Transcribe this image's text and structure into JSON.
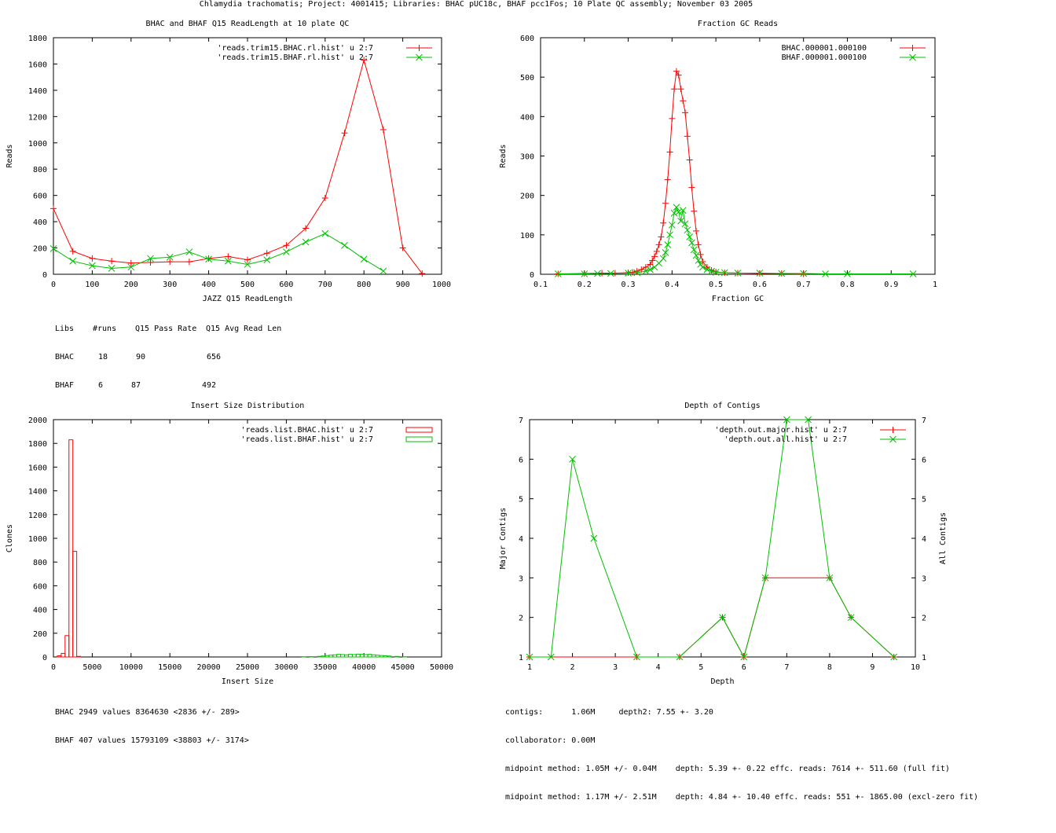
{
  "page_title": "Chlamydia trachomatis; Project: 4001415; Libraries: BHAC pUC18c, BHAF pcc1Fos; 10 Plate QC assembly; November 03 2005",
  "colors": {
    "series1": "#ff0000",
    "series2": "#00c000"
  },
  "chart_data": [
    {
      "type": "line",
      "title": "BHAC and BHAF Q15 ReadLength at 10 plate QC",
      "xlabel": "JAZZ Q15 ReadLength",
      "ylabel": "Reads",
      "xlim": [
        0,
        1000
      ],
      "ylim": [
        0,
        1800
      ],
      "xticks": [
        0,
        100,
        200,
        300,
        400,
        500,
        600,
        700,
        800,
        900,
        1000
      ],
      "yticks": [
        0,
        200,
        400,
        600,
        800,
        1000,
        1200,
        1400,
        1600,
        1800
      ],
      "legend_position": "top-right",
      "series": [
        {
          "name": "'reads.trim15.BHAC.rl.hist' u 2:7",
          "marker": "plus",
          "x": [
            0,
            50,
            100,
            150,
            200,
            250,
            300,
            350,
            400,
            450,
            500,
            550,
            600,
            650,
            700,
            750,
            800,
            850,
            900,
            950
          ],
          "y": [
            500,
            175,
            120,
            100,
            85,
            90,
            95,
            95,
            120,
            135,
            110,
            160,
            220,
            350,
            580,
            1075,
            1630,
            1100,
            200,
            5
          ]
        },
        {
          "name": "'reads.trim15.BHAF.rl.hist' u 2:7",
          "marker": "cross",
          "x": [
            0,
            50,
            100,
            150,
            200,
            250,
            300,
            350,
            400,
            450,
            500,
            550,
            600,
            650,
            700,
            750,
            800,
            850
          ],
          "y": [
            195,
            100,
            65,
            45,
            55,
            120,
            130,
            170,
            115,
            100,
            75,
            110,
            170,
            245,
            310,
            220,
            115,
            25
          ]
        }
      ],
      "stats_table": {
        "header": [
          "Libs",
          "#runs",
          "Q15 Pass Rate",
          "Q15 Avg Read Len"
        ],
        "rows": [
          [
            "BHAC",
            "18",
            "90",
            "656"
          ],
          [
            "BHAF",
            "6",
            "87",
            "492"
          ]
        ]
      }
    },
    {
      "type": "line",
      "title": "Fraction GC Reads",
      "xlabel": "Fraction GC",
      "ylabel": "Reads",
      "xlim": [
        0.1,
        1
      ],
      "ylim": [
        0,
        600
      ],
      "xticks": [
        0.1,
        0.2,
        0.3,
        0.4,
        0.5,
        0.6,
        0.7,
        0.8,
        0.9,
        1
      ],
      "yticks": [
        0,
        100,
        200,
        300,
        400,
        500,
        600
      ],
      "legend_position": "top-right",
      "series": [
        {
          "name": "BHAC.000001.000100",
          "marker": "plus",
          "x": [
            0.14,
            0.2,
            0.24,
            0.27,
            0.3,
            0.31,
            0.32,
            0.33,
            0.34,
            0.35,
            0.355,
            0.36,
            0.365,
            0.37,
            0.375,
            0.38,
            0.385,
            0.39,
            0.395,
            0.4,
            0.405,
            0.41,
            0.415,
            0.42,
            0.425,
            0.43,
            0.435,
            0.44,
            0.445,
            0.45,
            0.455,
            0.46,
            0.465,
            0.47,
            0.48,
            0.49,
            0.5,
            0.52,
            0.55,
            0.6,
            0.65,
            0.7
          ],
          "y": [
            1,
            2,
            3,
            3,
            4,
            5,
            8,
            12,
            18,
            25,
            35,
            45,
            58,
            75,
            95,
            130,
            180,
            240,
            310,
            395,
            470,
            515,
            505,
            470,
            440,
            410,
            350,
            290,
            220,
            160,
            110,
            75,
            50,
            32,
            18,
            10,
            6,
            4,
            3,
            2,
            2,
            1
          ]
        },
        {
          "name": "BHAF.000001.000100",
          "marker": "cross",
          "x": [
            0.14,
            0.2,
            0.23,
            0.26,
            0.3,
            0.32,
            0.34,
            0.35,
            0.36,
            0.37,
            0.38,
            0.385,
            0.39,
            0.395,
            0.4,
            0.405,
            0.41,
            0.415,
            0.42,
            0.425,
            0.43,
            0.435,
            0.44,
            0.445,
            0.45,
            0.455,
            0.46,
            0.465,
            0.47,
            0.48,
            0.49,
            0.5,
            0.52,
            0.55,
            0.6,
            0.65,
            0.7,
            0.75,
            0.8,
            0.95
          ],
          "y": [
            1,
            1,
            2,
            2,
            3,
            4,
            8,
            12,
            18,
            28,
            40,
            55,
            75,
            100,
            125,
            155,
            170,
            158,
            135,
            162,
            128,
            112,
            95,
            80,
            62,
            48,
            35,
            25,
            18,
            12,
            8,
            5,
            4,
            3,
            3,
            2,
            2,
            1,
            1,
            1
          ]
        }
      ]
    },
    {
      "type": "bar",
      "title": "Insert Size Distribution",
      "xlabel": "Insert Size",
      "ylabel": "Clones",
      "xlim": [
        0,
        50000
      ],
      "ylim": [
        0,
        2000
      ],
      "xticks": [
        0,
        5000,
        10000,
        15000,
        20000,
        25000,
        30000,
        35000,
        40000,
        45000,
        50000
      ],
      "yticks": [
        0,
        200,
        400,
        600,
        800,
        1000,
        1200,
        1400,
        1600,
        1800,
        2000
      ],
      "legend_position": "top-right",
      "series": [
        {
          "name": "'reads.list.BHAC.hist' u 2:7",
          "bin_width": 500,
          "x": [
            500,
            1000,
            1500,
            2000,
            2500,
            3000
          ],
          "y": [
            10,
            30,
            180,
            1830,
            890,
            5
          ]
        },
        {
          "name": "'reads.list.BHAF.hist' u 2:7",
          "bin_width": 500,
          "x": [
            32000,
            33000,
            34000,
            34500,
            35000,
            35500,
            36000,
            36500,
            37000,
            37500,
            38000,
            38500,
            39000,
            39500,
            40000,
            40500,
            41000,
            41500,
            42000,
            42500,
            43000,
            44000,
            45000
          ],
          "y": [
            2,
            3,
            5,
            8,
            12,
            15,
            18,
            22,
            20,
            18,
            22,
            20,
            24,
            22,
            20,
            22,
            18,
            15,
            12,
            10,
            8,
            5,
            2
          ]
        }
      ],
      "stats_text": [
        "BHAC 2949 values 8364630 <2836 +/- 289>",
        "BHAF 407 values 15793109 <38803 +/- 3174>"
      ]
    },
    {
      "type": "line",
      "title": "Depth of Contigs",
      "xlabel": "Depth",
      "ylabel": "Major Contigs",
      "y2label": "All Contigs",
      "xlim": [
        1,
        10
      ],
      "ylim": [
        1,
        7
      ],
      "y2lim": [
        1,
        7
      ],
      "xticks": [
        1,
        2,
        3,
        4,
        5,
        6,
        7,
        8,
        9,
        10
      ],
      "yticks": [
        1,
        2,
        3,
        4,
        5,
        6,
        7
      ],
      "legend_position": "top-right",
      "series": [
        {
          "name": "'depth.out.major.hist' u 2:7",
          "marker": "plus",
          "x": [
            1,
            3.5,
            4.5,
            5.5,
            6,
            6.5,
            8,
            8.5,
            9.5
          ],
          "y": [
            1,
            1,
            1,
            2,
            1,
            3,
            3,
            2,
            1
          ]
        },
        {
          "name": "'depth.out.all.hist' u 2:7",
          "marker": "cross",
          "x": [
            1,
            1.5,
            2,
            2.5,
            3.5,
            4.5,
            5.5,
            6,
            6.5,
            7,
            7.5,
            8,
            8.5,
            9.5
          ],
          "y": [
            1,
            1,
            6,
            4,
            1,
            1,
            2,
            1,
            3,
            7,
            7,
            3,
            2,
            1
          ]
        }
      ],
      "stats_text": [
        "contigs:      1.06M     depth2: 7.55 +- 3.20",
        "collaborator: 0.00M",
        "midpoint method: 1.05M +/- 0.04M    depth: 5.39 +- 0.22 effc. reads: 7614 +- 511.60 (full fit)",
        "midpoint method: 1.17M +/- 2.51M    depth: 4.84 +- 10.40 effc. reads: 551 +- 1865.00 (excl-zero fit)"
      ]
    }
  ]
}
